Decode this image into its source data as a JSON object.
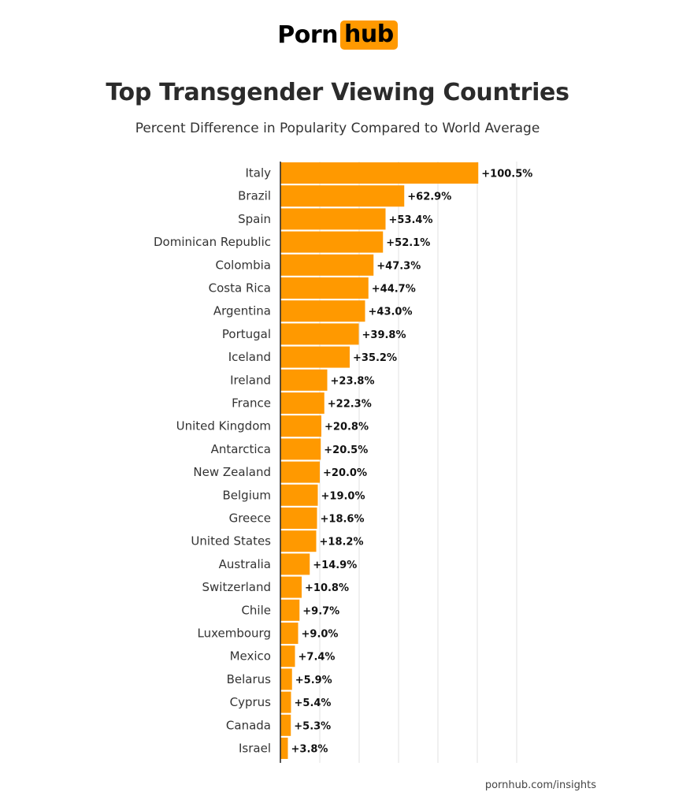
{
  "logo": {
    "part1": "Porn",
    "part2": "hub"
  },
  "header": {
    "title": "Top Transgender Viewing Countries",
    "subtitle": "Percent Difference in Popularity Compared to World Average"
  },
  "footer": {
    "source": "pornhub.com/insights"
  },
  "colors": {
    "bar": "#ff9900",
    "accent": "#ff9900",
    "grid": "#e2e2e2"
  },
  "chart_data": {
    "type": "bar",
    "orientation": "horizontal",
    "title": "Top Transgender Viewing Countries",
    "subtitle": "Percent Difference in Popularity Compared to World Average",
    "categories": [
      "Italy",
      "Brazil",
      "Spain",
      "Dominican Republic",
      "Colombia",
      "Costa Rica",
      "Argentina",
      "Portugal",
      "Iceland",
      "Ireland",
      "France",
      "United Kingdom",
      "Antarctica",
      "New Zealand",
      "Belgium",
      "Greece",
      "United States",
      "Australia",
      "Switzerland",
      "Chile",
      "Luxembourg",
      "Mexico",
      "Belarus",
      "Cyprus",
      "Canada",
      "Israel"
    ],
    "values": [
      100.5,
      62.9,
      53.4,
      52.1,
      47.3,
      44.7,
      43.0,
      39.8,
      35.2,
      23.8,
      22.3,
      20.8,
      20.5,
      20.0,
      19.0,
      18.6,
      18.2,
      14.9,
      10.8,
      9.7,
      9.0,
      7.4,
      5.9,
      5.4,
      5.3,
      3.8
    ],
    "value_labels": [
      "+100.5%",
      "+62.9%",
      "+53.4%",
      "+52.1%",
      "+47.3%",
      "+44.7%",
      "+43.0%",
      "+39.8%",
      "+35.2%",
      "+23.8%",
      "+22.3%",
      "+20.8%",
      "+20.5%",
      "+20.0%",
      "+19.0%",
      "+18.6%",
      "+18.2%",
      "+14.9%",
      "+10.8%",
      "+9.7%",
      "+9.0%",
      "+7.4%",
      "+5.9%",
      "+5.4%",
      "+5.3%",
      "+3.8%"
    ],
    "xlim": [
      0,
      120
    ],
    "gridlines": [
      20,
      40,
      60,
      80,
      100,
      120
    ],
    "grid": true,
    "legend": "none"
  }
}
